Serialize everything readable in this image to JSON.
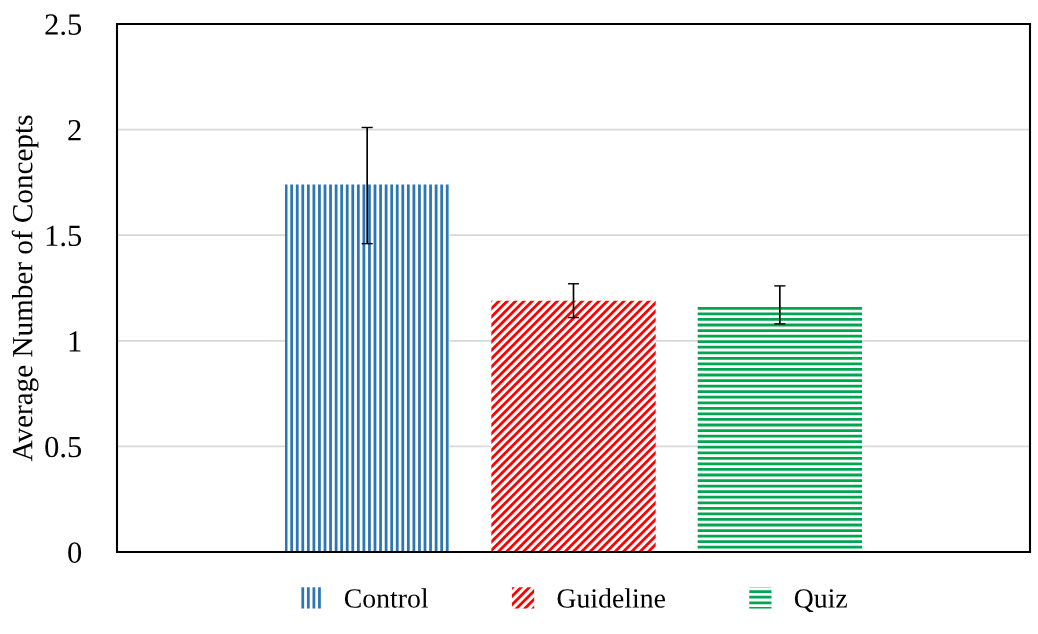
{
  "chart_data": {
    "type": "bar",
    "ylabel": "Average Number of Concepts",
    "categories": [
      null
    ],
    "series": [
      {
        "name": "Control",
        "color": "#2e75b6",
        "values": [
          1.74
        ],
        "errors": [
          [
            1.46,
            2.01
          ]
        ]
      },
      {
        "name": "Guideline",
        "color": "#ff0000",
        "values": [
          1.19
        ],
        "errors": [
          [
            1.11,
            1.27
          ]
        ]
      },
      {
        "name": "Quiz",
        "color": "#00a550",
        "values": [
          1.16
        ],
        "errors": [
          [
            1.08,
            1.26
          ]
        ]
      }
    ],
    "ylim": [
      0,
      2.5
    ],
    "yticks": [
      0,
      0.5,
      1,
      1.5,
      2,
      2.5
    ],
    "grid": "y",
    "legend": "bottom"
  }
}
